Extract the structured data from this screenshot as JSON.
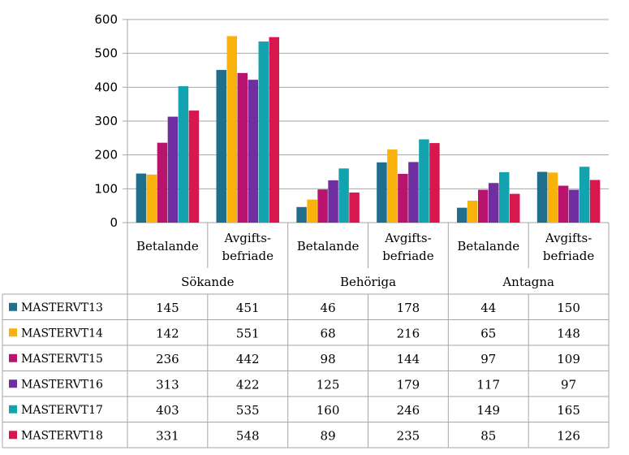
{
  "chart_data": {
    "type": "bar",
    "groups": [
      "Sökande",
      "Behöriga",
      "Antagna"
    ],
    "categories": [
      "Betalande",
      "Avgifts-\nbefriade",
      "Betalande",
      "Avgifts-\nbefriade",
      "Betalande",
      "Avgifts-\nbefriade"
    ],
    "ylim": [
      0,
      600
    ],
    "yticks": [
      0,
      100,
      200,
      300,
      400,
      500,
      600
    ],
    "grid": true,
    "legend": "data-table",
    "series": [
      {
        "name": "MASTERVT13",
        "color": "#1f6e8c",
        "values": [
          145,
          451,
          46,
          178,
          44,
          150
        ]
      },
      {
        "name": "MASTERVT14",
        "color": "#f9b10b",
        "values": [
          142,
          551,
          68,
          216,
          65,
          148
        ]
      },
      {
        "name": "MASTERVT15",
        "color": "#b8146e",
        "values": [
          236,
          442,
          98,
          144,
          97,
          109
        ]
      },
      {
        "name": "MASTERVT16",
        "color": "#6f2fa0",
        "values": [
          313,
          422,
          125,
          179,
          117,
          97
        ]
      },
      {
        "name": "MASTERVT17",
        "color": "#13a3ae",
        "values": [
          403,
          535,
          160,
          246,
          149,
          165
        ]
      },
      {
        "name": "MASTERVT18",
        "color": "#d9174f",
        "values": [
          331,
          548,
          89,
          235,
          85,
          126
        ]
      }
    ]
  }
}
